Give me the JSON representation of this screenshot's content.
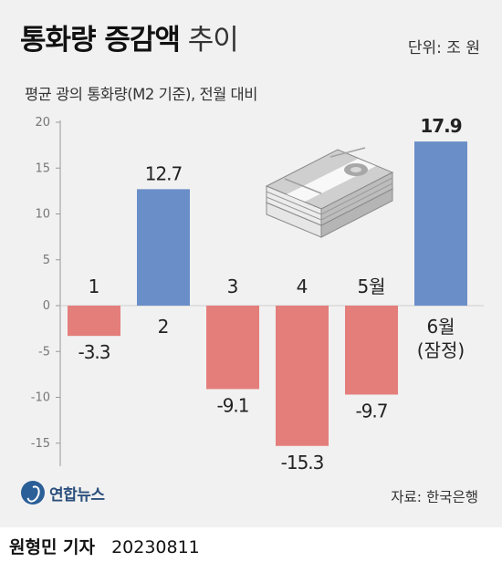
{
  "header": {
    "title_bold": "통화량 증감액",
    "title_light": "추이",
    "unit": "단위: 조 원",
    "subtitle": "평균 광의 통화량(M2 기준), 전월 대비"
  },
  "footer": {
    "logo_text": "연합뉴스",
    "source": "자료: 한국은행",
    "reporter": "원형민 기자",
    "date": "20230811"
  },
  "colors": {
    "negative": "#e47e7b",
    "positive": "#6a8ec8",
    "axis": "#999999",
    "tick_text": "#777777",
    "background": "#f1f1f1"
  },
  "illustration": "money-stack-icon",
  "chart_data": {
    "type": "bar",
    "title": "통화량 증감액 추이",
    "subtitle": "평균 광의 통화량(M2 기준), 전월 대비",
    "ylabel": "단위: 조 원",
    "ylim": [
      -18,
      20
    ],
    "yticks": [
      "20",
      "15",
      "10",
      "5",
      "0",
      "-5",
      "-10",
      "-15"
    ],
    "ytick_values": [
      20,
      15,
      10,
      5,
      0,
      -5,
      -10,
      -15
    ],
    "grid": false,
    "categories": [
      "1",
      "2",
      "3",
      "4",
      "5월",
      "6월\n(잠정)"
    ],
    "values": [
      -3.3,
      12.7,
      -9.1,
      -15.3,
      -9.7,
      17.9
    ],
    "value_labels": [
      "-3.3",
      "12.7",
      "-9.1",
      "-15.3",
      "-9.7",
      "17.9"
    ]
  }
}
